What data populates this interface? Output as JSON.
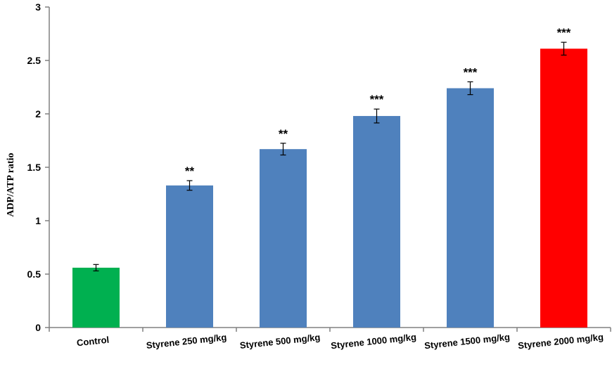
{
  "chart_data": {
    "type": "bar",
    "title": "",
    "xlabel": "",
    "ylabel": "ADP/ATP  ratio",
    "ylim": [
      0,
      3
    ],
    "yticks": [
      "0",
      "0.5",
      "1",
      "1.5",
      "2",
      "2.5",
      "3"
    ],
    "categories": [
      "Control",
      "Styrene 250 mg/kg",
      "Styrene 500 mg/kg",
      "Styrene 1000 mg/kg",
      "Styrene 1500 mg/kg",
      "Styrene 2000 mg/kg"
    ],
    "values": [
      0.56,
      1.33,
      1.67,
      1.98,
      2.24,
      2.61
    ],
    "errors": [
      0.03,
      0.045,
      0.055,
      0.065,
      0.06,
      0.06
    ],
    "significance": [
      "",
      "**",
      "**",
      "***",
      "***",
      "***"
    ],
    "colors": [
      "#00b050",
      "#4f81bd",
      "#4f81bd",
      "#4f81bd",
      "#4f81bd",
      "#ff0000"
    ],
    "grid": false,
    "legend": "none"
  }
}
